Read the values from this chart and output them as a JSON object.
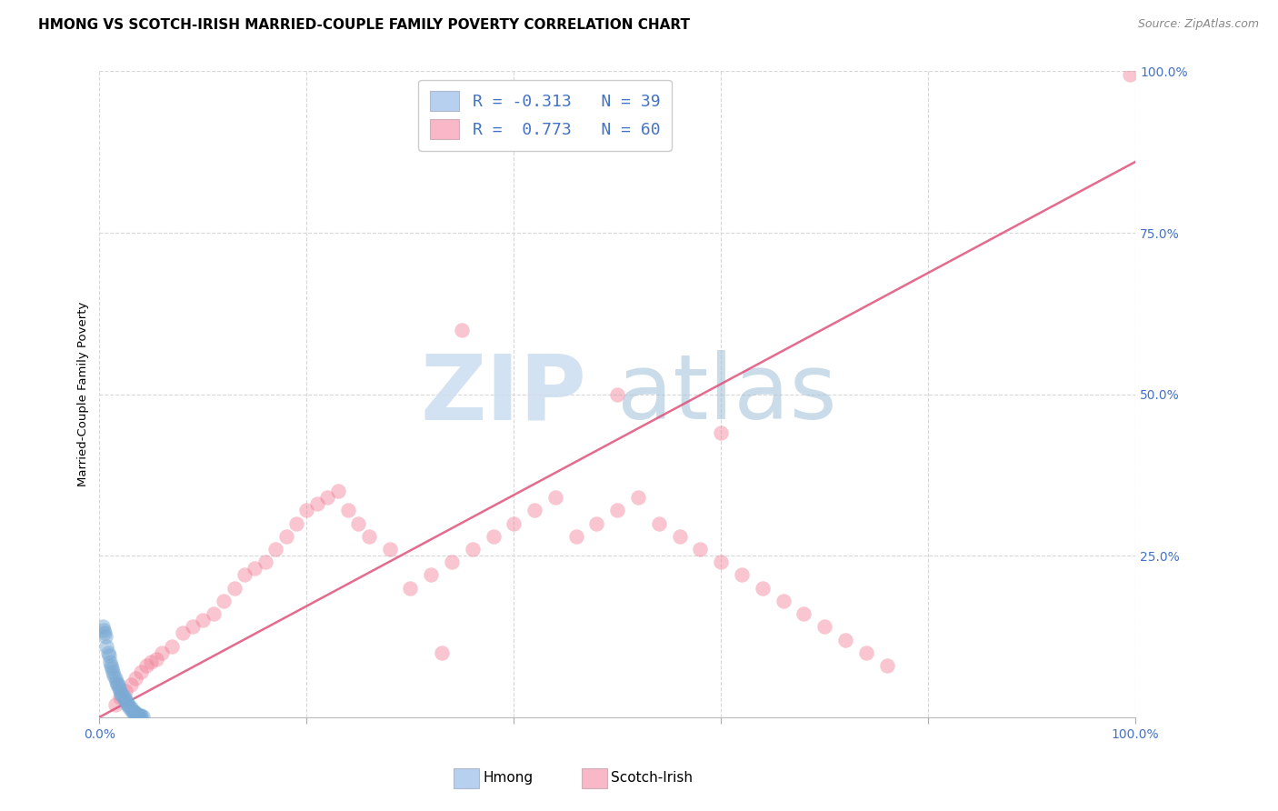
{
  "title": "HMONG VS SCOTCH-IRISH MARRIED-COUPLE FAMILY POVERTY CORRELATION CHART",
  "source": "Source: ZipAtlas.com",
  "ylabel": "Married-Couple Family Poverty",
  "xlim": [
    0,
    100
  ],
  "ylim": [
    0,
    100
  ],
  "hmong_color": "#7baad4",
  "scotch_color": "#f08098",
  "regression_line_color": "#e0507a",
  "hmong_legend_color": "#b8d0f0",
  "scotch_legend_color": "#f8b8c8",
  "background_color": "#ffffff",
  "grid_color": "#d8d8d8",
  "right_label_color": "#4472c4",
  "source_color": "#888888",
  "legend_text_color": "#4472c4",
  "title_fontsize": 11,
  "scotch_x": [
    1.5,
    2.0,
    2.5,
    3.0,
    3.5,
    4.0,
    4.5,
    5.0,
    5.5,
    6.0,
    7.0,
    8.0,
    9.0,
    10.0,
    11.0,
    12.0,
    13.0,
    14.0,
    15.0,
    16.0,
    17.0,
    18.0,
    19.0,
    20.0,
    21.0,
    22.0,
    23.0,
    24.0,
    25.0,
    26.0,
    28.0,
    30.0,
    32.0,
    34.0,
    36.0,
    38.0,
    40.0,
    42.0,
    44.0,
    46.0,
    48.0,
    50.0,
    52.0,
    54.0,
    56.0,
    58.0,
    60.0,
    62.0,
    64.0,
    66.0,
    68.0,
    70.0,
    72.0,
    74.0,
    76.0,
    99.5,
    35.0,
    33.0,
    50.0,
    60.0
  ],
  "scotch_y": [
    2.0,
    3.0,
    4.0,
    5.0,
    6.0,
    7.0,
    8.0,
    8.5,
    9.0,
    10.0,
    11.0,
    13.0,
    14.0,
    15.0,
    16.0,
    18.0,
    20.0,
    22.0,
    23.0,
    24.0,
    26.0,
    28.0,
    30.0,
    32.0,
    33.0,
    34.0,
    35.0,
    32.0,
    30.0,
    28.0,
    26.0,
    20.0,
    22.0,
    24.0,
    26.0,
    28.0,
    30.0,
    32.0,
    34.0,
    28.0,
    30.0,
    32.0,
    34.0,
    30.0,
    28.0,
    26.0,
    24.0,
    22.0,
    20.0,
    18.0,
    16.0,
    14.0,
    12.0,
    10.0,
    8.0,
    99.5,
    60.0,
    10.0,
    50.0,
    44.0
  ],
  "hmong_x": [
    0.3,
    0.4,
    0.5,
    0.6,
    0.7,
    0.8,
    0.9,
    1.0,
    1.1,
    1.2,
    1.3,
    1.4,
    1.5,
    1.6,
    1.7,
    1.8,
    1.9,
    2.0,
    2.1,
    2.2,
    2.3,
    2.4,
    2.5,
    2.6,
    2.7,
    2.8,
    2.9,
    3.0,
    3.1,
    3.2,
    3.3,
    3.4,
    3.5,
    3.6,
    3.7,
    3.8,
    3.9,
    4.0,
    4.2
  ],
  "hmong_y": [
    14.0,
    13.5,
    13.0,
    12.5,
    11.0,
    10.0,
    9.5,
    8.5,
    8.0,
    7.5,
    7.0,
    6.5,
    6.0,
    5.5,
    5.0,
    5.0,
    4.5,
    4.0,
    3.5,
    3.5,
    3.0,
    3.0,
    2.5,
    2.5,
    2.0,
    2.0,
    1.5,
    1.5,
    1.0,
    1.0,
    0.8,
    0.8,
    0.5,
    0.5,
    0.3,
    0.3,
    0.2,
    0.2,
    0.1
  ],
  "reg_x0": 0,
  "reg_y0": 0,
  "reg_x1": 100,
  "reg_y1": 86,
  "watermark_zip_color": "#ccddf0",
  "watermark_atlas_color": "#a0c0d8"
}
